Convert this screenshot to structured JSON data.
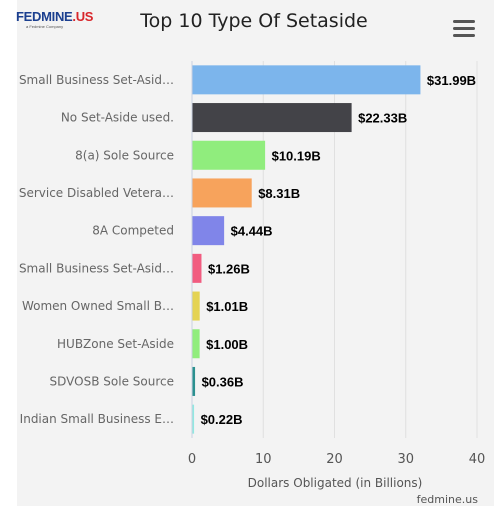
{
  "logo": {
    "brand": "FEDMINE",
    "suffix": ".US",
    "tagline": "a Fedmine Company"
  },
  "menu_icon": "hamburger-menu-icon",
  "credit": "fedmine.us",
  "chart_data": {
    "type": "bar",
    "orientation": "horizontal",
    "title": "Top 10 Type Of Setaside",
    "xlabel": "Dollars Obligated (in Billions)",
    "ylabel": "",
    "xlim": [
      0,
      40
    ],
    "ticks": [
      0,
      10,
      20,
      30,
      40
    ],
    "grid": true,
    "categories": [
      "Small Business Set-Asid…",
      "No Set-Aside used.",
      "8(a) Sole Source",
      "Service Disabled Vetera…",
      "8A Competed",
      "Small Business Set-Asid…",
      "Women Owned Small B…",
      "HUBZone Set-Aside",
      "SDVOSB Sole Source",
      "Indian Small Business E…"
    ],
    "values": [
      31.99,
      22.33,
      10.19,
      8.31,
      4.44,
      1.26,
      1.01,
      1.0,
      0.36,
      0.22
    ],
    "value_labels": [
      "$31.99B",
      "$22.33B",
      "$10.19B",
      "$8.31B",
      "$4.44B",
      "$1.26B",
      "$1.01B",
      "$1.00B",
      "$0.36B",
      "$0.22B"
    ],
    "colors": [
      "#7cb5ec",
      "#434348",
      "#90ed7d",
      "#f7a35c",
      "#8085e9",
      "#f15c80",
      "#e4d354",
      "#90ed7d",
      "#2b908f",
      "#91e8e1"
    ]
  }
}
